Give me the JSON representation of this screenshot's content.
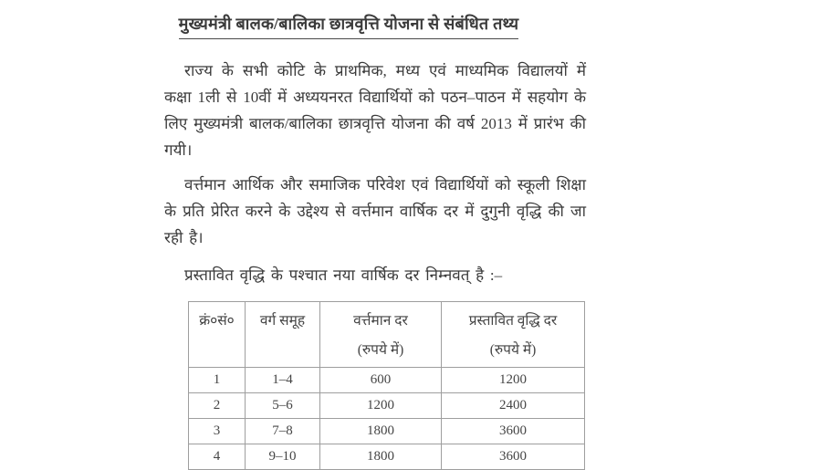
{
  "colors": {
    "background": "#ffffff",
    "text": "#3b3b3b",
    "table_border": "#9e9e9e"
  },
  "doc": {
    "title": "मुख्यमंत्री बालक/बालिका छात्रवृत्ति योजना से संबंधित तथ्य",
    "paragraphs": [
      "राज्य के सभी कोटि के प्राथमिक, मध्य एवं माध्यमिक विद्यालयों में कक्षा 1ली से 10वीं में अध्ययनरत विद्यार्थियों को पठन–पाठन में सहयोग के लिए मुख्यमंत्री बालक/बालिका छात्रवृत्ति योजना की वर्ष 2013 में प्रारंभ की गयी।",
      "वर्त्तमान आर्थिक और समाजिक परिवेश एवं विद्यार्थियों को स्कूली शिक्षा के प्रति प्रेरित करने के उद्देश्य से वर्त्तमान वार्षिक दर में दुगुनी वृद्धि की जा रही है।",
      "प्रस्तावित वृद्धि के पश्चात नया वार्षिक दर निम्नवत् है :–"
    ],
    "table": {
      "headers": [
        {
          "line1": "क्रं०सं०",
          "line2": ""
        },
        {
          "line1": "वर्ग समूह",
          "line2": ""
        },
        {
          "line1": "वर्त्तमान दर",
          "line2": "(रुपये में)"
        },
        {
          "line1": "प्रस्तावित वृद्धि दर",
          "line2": "(रुपये में)"
        }
      ],
      "rows": [
        [
          "1",
          "1–4",
          "600",
          "1200"
        ],
        [
          "2",
          "5–6",
          "1200",
          "2400"
        ],
        [
          "3",
          "7–8",
          "1800",
          "3600"
        ],
        [
          "4",
          "9–10",
          "1800",
          "3600"
        ]
      ]
    }
  }
}
